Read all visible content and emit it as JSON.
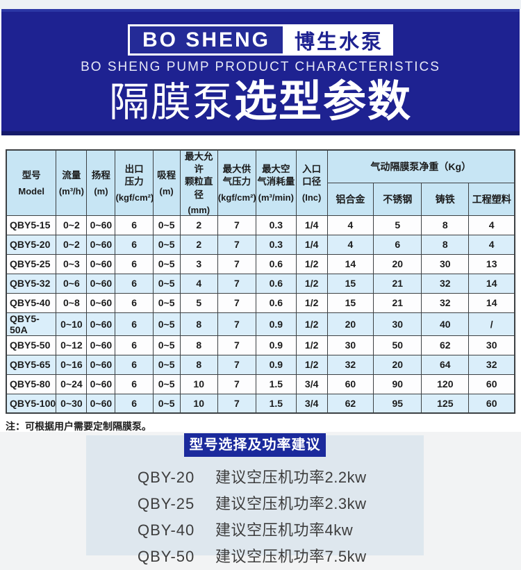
{
  "header": {
    "logo_en": "BO SHENG",
    "logo_cn": "博生水泵",
    "subtitle": "BO SHENG PUMP PRODUCT CHARACTERISTICS",
    "title_light": "隔膜泵",
    "title_bold": "选型参数"
  },
  "colors": {
    "banner_blue": "#1e2291",
    "banner_bottom_line": "#161b6b",
    "table_header_bg": "#c7e5f4",
    "table_alt_row_bg": "#daeefa",
    "panel_bg": "#dee7ee",
    "panel_title_bg": "#1b2a9c"
  },
  "table": {
    "columns": [
      {
        "label": "型号",
        "unit": "Model"
      },
      {
        "label": "流量",
        "unit": "(m³/h)"
      },
      {
        "label": "扬程",
        "unit": "(m)"
      },
      {
        "label": "出口\n压力",
        "unit": "(kgf/cm²)"
      },
      {
        "label": "吸程",
        "unit": "(m)"
      },
      {
        "label": "最大允许\n颗粒直径",
        "unit": "(mm)"
      },
      {
        "label": "最大供\n气压力",
        "unit": "(kgf/cm²)"
      },
      {
        "label": "最大空\n气消耗量",
        "unit": "(m³/min)"
      },
      {
        "label": "入口\n口径",
        "unit": "(Inc)"
      }
    ],
    "weight_group": {
      "label": "气动隔膜泵净重（Kg）",
      "sub_columns": [
        "铝合金",
        "不锈钢",
        "铸铁",
        "工程塑料"
      ]
    },
    "rows": [
      [
        "QBY5-15",
        "0~2",
        "0~60",
        "6",
        "0~5",
        "2",
        "7",
        "0.3",
        "1/4",
        "4",
        "5",
        "8",
        "4"
      ],
      [
        "QBY5-20",
        "0~2",
        "0~60",
        "6",
        "0~5",
        "2",
        "7",
        "0.3",
        "1/4",
        "4",
        "6",
        "8",
        "4"
      ],
      [
        "QBY5-25",
        "0~3",
        "0~60",
        "6",
        "0~5",
        "3",
        "7",
        "0.6",
        "1/2",
        "14",
        "20",
        "30",
        "13"
      ],
      [
        "QBY5-32",
        "0~6",
        "0~60",
        "6",
        "0~5",
        "4",
        "7",
        "0.6",
        "1/2",
        "15",
        "21",
        "32",
        "14"
      ],
      [
        "QBY5-40",
        "0~8",
        "0~60",
        "6",
        "0~5",
        "5",
        "7",
        "0.6",
        "1/2",
        "15",
        "21",
        "32",
        "14"
      ],
      [
        "QBY5-50A",
        "0~10",
        "0~60",
        "6",
        "0~5",
        "8",
        "7",
        "0.9",
        "1/2",
        "20",
        "30",
        "40",
        "/"
      ],
      [
        "QBY5-50",
        "0~12",
        "0~60",
        "6",
        "0~5",
        "8",
        "7",
        "0.9",
        "1/2",
        "30",
        "50",
        "62",
        "30"
      ],
      [
        "QBY5-65",
        "0~16",
        "0~60",
        "6",
        "0~5",
        "8",
        "7",
        "0.9",
        "1/2",
        "32",
        "20",
        "64",
        "32"
      ],
      [
        "QBY5-80",
        "0~24",
        "0~60",
        "6",
        "0~5",
        "10",
        "7",
        "1.5",
        "3/4",
        "60",
        "90",
        "120",
        "60"
      ],
      [
        "QBY5-100",
        "0~30",
        "0~60",
        "6",
        "0~5",
        "10",
        "7",
        "1.5",
        "3/4",
        "62",
        "95",
        "125",
        "60"
      ]
    ],
    "note": "注：可根据用户需要定制隔膜泵。"
  },
  "recommendation": {
    "title": "型号选择及功率建议",
    "items": [
      {
        "model": "QBY-20",
        "text": "建议空压机功率2.2kw"
      },
      {
        "model": "QBY-25",
        "text": "建议空压机功率2.3kw"
      },
      {
        "model": "QBY-40",
        "text": "建议空压机功率4kw"
      },
      {
        "model": "QBY-50",
        "text": "建议空压机功率7.5kw"
      }
    ]
  }
}
